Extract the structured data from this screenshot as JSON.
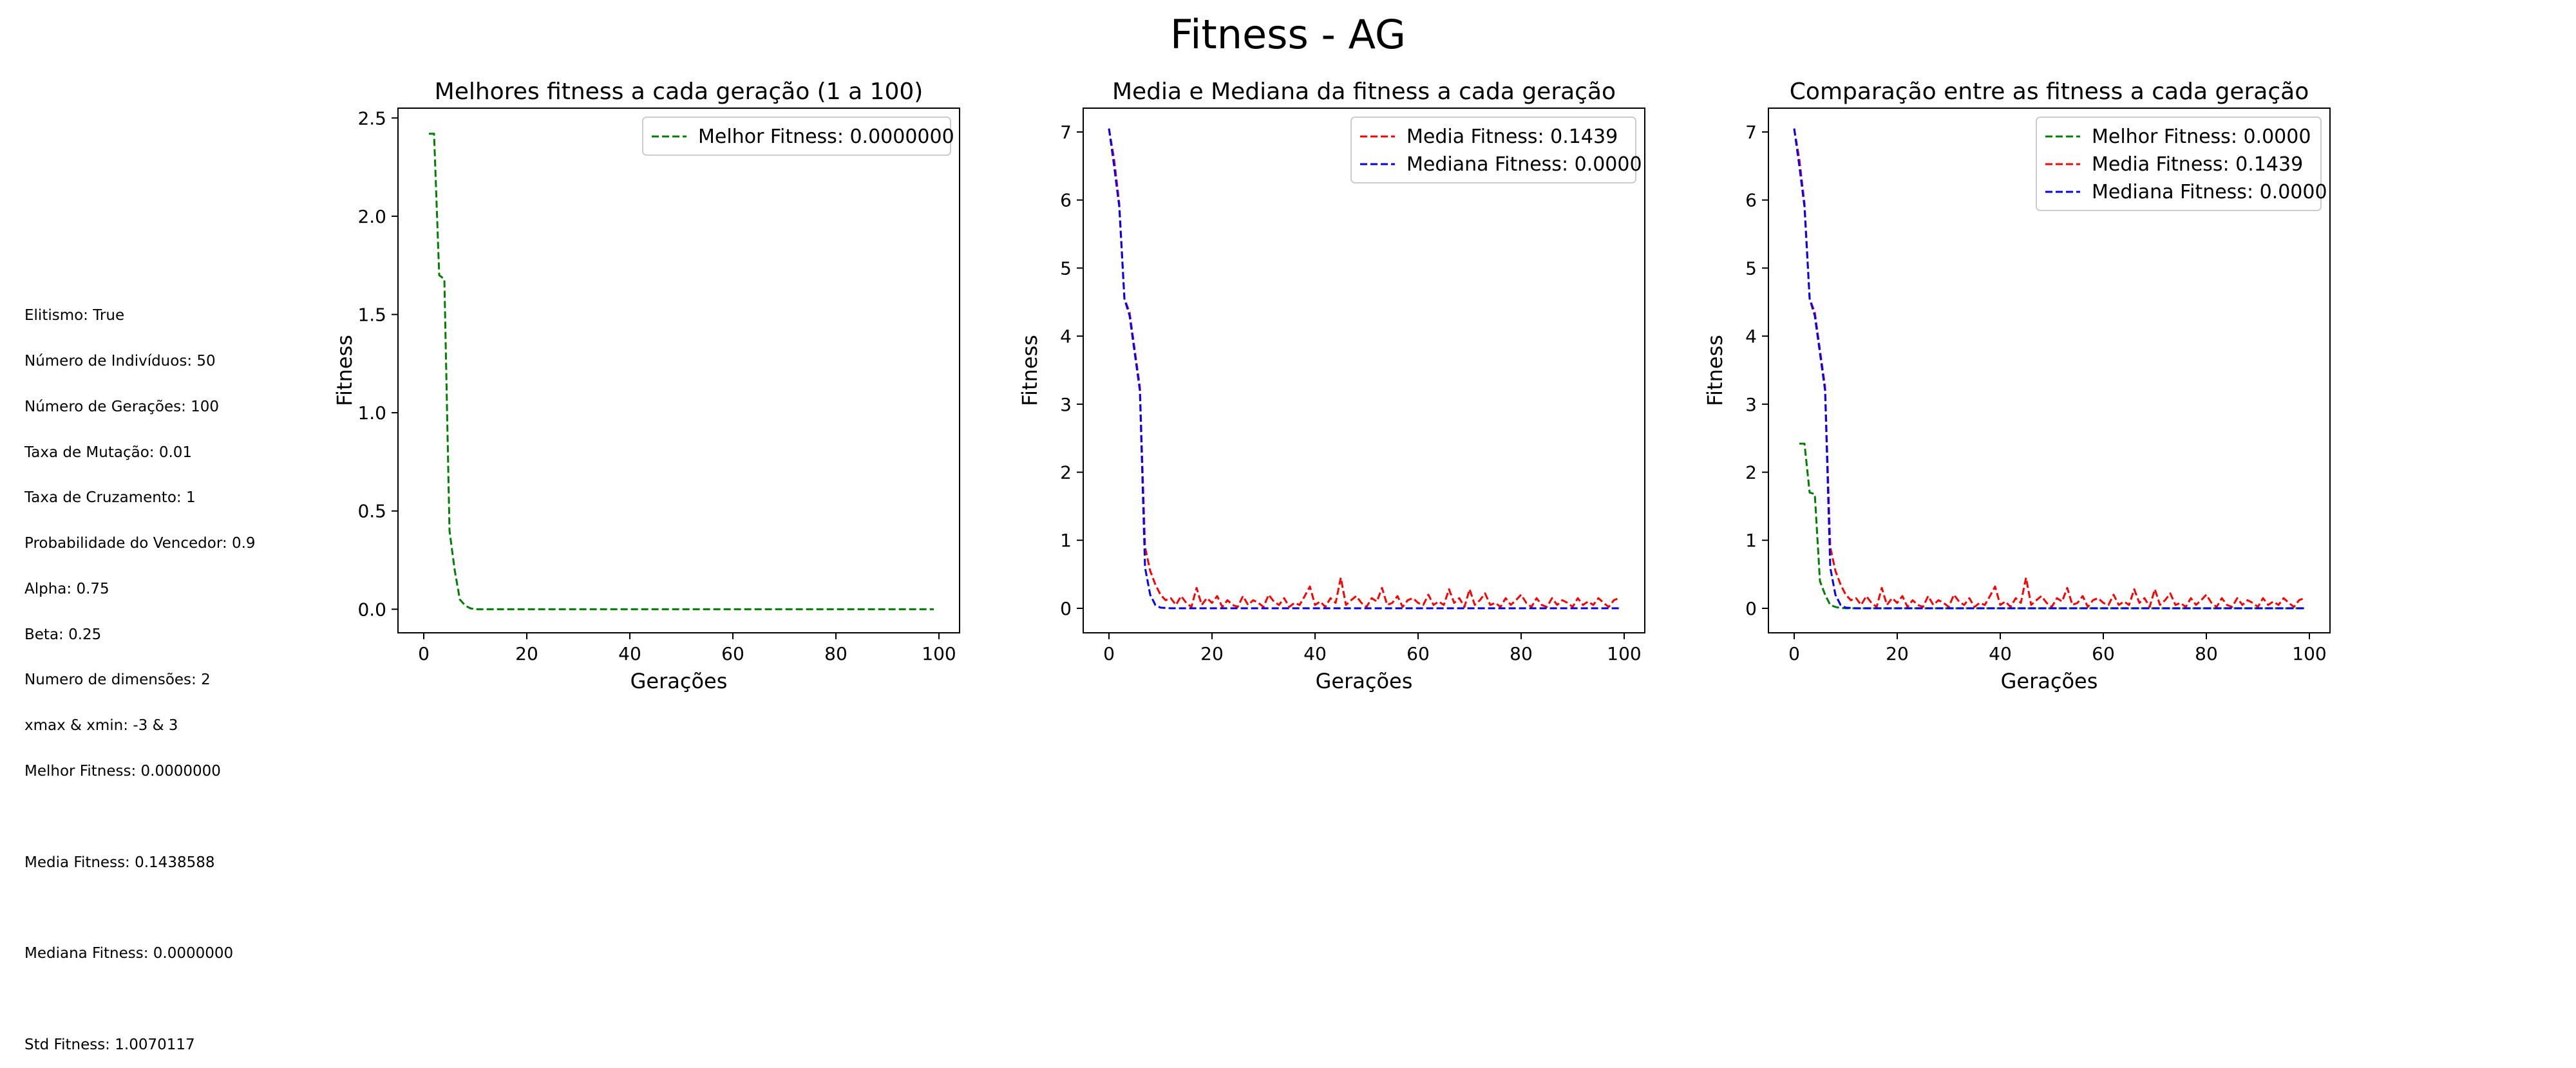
{
  "figure_title": "Fitness - AG",
  "info_lines": [
    "Elitismo: True",
    "Número de Indivíduos: 50",
    "Número de Gerações: 100",
    "Taxa de Mutação: 0.01",
    "Taxa de Cruzamento: 1",
    "Probabilidade do Vencedor: 0.9",
    "Alpha: 0.75",
    "Beta: 0.25",
    "Numero de dimensões: 2",
    "xmax & xmin: -3 & 3",
    "Melhor Fitness: 0.0000000",
    "",
    "Media Fitness: 0.1438588",
    "",
    "Mediana Fitness: 0.0000000",
    "",
    "Std Fitness: 1.0070117"
  ],
  "colors": {
    "best": "#008000",
    "mean": "#ff0000",
    "median": "#0000ff"
  },
  "chart_data": [
    {
      "type": "line",
      "title": "Melhores fitness a cada geração (1 a 100)",
      "xlabel": "Gerações",
      "ylabel": "Fitness",
      "xlim": [
        -5,
        104
      ],
      "ylim": [
        -0.12,
        2.55
      ],
      "xticks": [
        0,
        20,
        40,
        60,
        80,
        100
      ],
      "yticks": [
        0.0,
        0.5,
        1.0,
        1.5,
        2.0,
        2.5
      ],
      "ytick_labels": [
        "0.0",
        "0.5",
        "1.0",
        "1.5",
        "2.0",
        "2.5"
      ],
      "legend_loc": "upper right",
      "series": [
        {
          "name": "Melhor Fitness: 0.0000000",
          "color": "#008000",
          "x": [
            1,
            2,
            3,
            4,
            5,
            6,
            7,
            8,
            9,
            10,
            99
          ],
          "y": [
            2.42,
            2.42,
            1.7,
            1.68,
            0.4,
            0.2,
            0.05,
            0.02,
            0.005,
            0.0,
            0.0
          ]
        }
      ]
    },
    {
      "type": "line",
      "title": "Media e Mediana da fitness a cada geração",
      "xlabel": "Gerações",
      "ylabel": "Fitness",
      "xlim": [
        -5,
        104
      ],
      "ylim": [
        -0.36,
        7.35
      ],
      "xticks": [
        0,
        20,
        40,
        60,
        80,
        100
      ],
      "yticks": [
        0,
        1,
        2,
        3,
        4,
        5,
        6,
        7
      ],
      "ytick_labels": [
        "0",
        "1",
        "2",
        "3",
        "4",
        "5",
        "6",
        "7"
      ],
      "legend_loc": "upper right",
      "series": [
        {
          "name": "Media Fitness: 0.1439",
          "color": "#ff0000",
          "x": [
            0,
            1,
            2,
            3,
            4,
            5,
            6,
            7,
            8,
            9,
            10,
            11,
            12,
            13,
            14,
            15,
            16,
            17,
            18,
            19,
            20,
            21,
            22,
            23,
            24,
            25,
            26,
            27,
            28,
            29,
            30,
            31,
            32,
            33,
            34,
            35,
            36,
            37,
            38,
            39,
            40,
            41,
            42,
            43,
            44,
            45,
            46,
            47,
            48,
            49,
            50,
            51,
            52,
            53,
            54,
            55,
            56,
            57,
            58,
            59,
            60,
            61,
            62,
            63,
            64,
            65,
            66,
            67,
            68,
            69,
            70,
            71,
            72,
            73,
            74,
            75,
            76,
            77,
            78,
            79,
            80,
            81,
            82,
            83,
            84,
            85,
            86,
            87,
            88,
            89,
            90,
            91,
            92,
            93,
            94,
            95,
            96,
            97,
            98,
            99
          ],
          "y": [
            7.05,
            6.6,
            5.95,
            4.55,
            4.35,
            3.8,
            3.25,
            0.9,
            0.55,
            0.35,
            0.2,
            0.12,
            0.15,
            0.05,
            0.18,
            0.08,
            0.02,
            0.3,
            0.05,
            0.15,
            0.08,
            0.18,
            0.02,
            0.12,
            0.05,
            0.02,
            0.18,
            0.05,
            0.12,
            0.08,
            0.02,
            0.2,
            0.1,
            0.05,
            0.15,
            0.02,
            0.08,
            0.05,
            0.18,
            0.32,
            0.05,
            0.1,
            0.02,
            0.15,
            0.08,
            0.45,
            0.05,
            0.12,
            0.18,
            0.08,
            0.02,
            0.15,
            0.1,
            0.3,
            0.05,
            0.08,
            0.18,
            0.02,
            0.12,
            0.15,
            0.08,
            0.05,
            0.2,
            0.05,
            0.1,
            0.05,
            0.28,
            0.08,
            0.15,
            0.02,
            0.28,
            0.05,
            0.12,
            0.22,
            0.05,
            0.08,
            0.02,
            0.15,
            0.05,
            0.12,
            0.2,
            0.08,
            0.02,
            0.15,
            0.05,
            0.02,
            0.15,
            0.05,
            0.12,
            0.08,
            0.02,
            0.15,
            0.05,
            0.1,
            0.05,
            0.15,
            0.08,
            0.02,
            0.12,
            0.15
          ]
        },
        {
          "name": "Mediana Fitness: 0.0000",
          "color": "#0000ff",
          "x": [
            0,
            1,
            2,
            3,
            4,
            5,
            6,
            7,
            8,
            9,
            10,
            12,
            99
          ],
          "y": [
            7.05,
            6.5,
            5.9,
            4.55,
            4.3,
            3.75,
            3.2,
            0.6,
            0.2,
            0.05,
            0.01,
            0.0,
            0.0
          ]
        }
      ]
    },
    {
      "type": "line",
      "title": "Comparação entre as fitness a cada geração",
      "xlabel": "Gerações",
      "ylabel": "Fitness",
      "xlim": [
        -5,
        104
      ],
      "ylim": [
        -0.36,
        7.35
      ],
      "xticks": [
        0,
        20,
        40,
        60,
        80,
        100
      ],
      "yticks": [
        0,
        1,
        2,
        3,
        4,
        5,
        6,
        7
      ],
      "ytick_labels": [
        "0",
        "1",
        "2",
        "3",
        "4",
        "5",
        "6",
        "7"
      ],
      "legend_loc": "upper right",
      "series": [
        {
          "name": "Melhor Fitness: 0.0000",
          "color": "#008000",
          "x": [
            1,
            2,
            3,
            4,
            5,
            6,
            7,
            8,
            9,
            10,
            99
          ],
          "y": [
            2.42,
            2.42,
            1.7,
            1.68,
            0.4,
            0.2,
            0.05,
            0.02,
            0.005,
            0.0,
            0.0
          ]
        },
        {
          "name": "Media Fitness: 0.1439",
          "color": "#ff0000",
          "x": [
            0,
            1,
            2,
            3,
            4,
            5,
            6,
            7,
            8,
            9,
            10,
            11,
            12,
            13,
            14,
            15,
            16,
            17,
            18,
            19,
            20,
            21,
            22,
            23,
            24,
            25,
            26,
            27,
            28,
            29,
            30,
            31,
            32,
            33,
            34,
            35,
            36,
            37,
            38,
            39,
            40,
            41,
            42,
            43,
            44,
            45,
            46,
            47,
            48,
            49,
            50,
            51,
            52,
            53,
            54,
            55,
            56,
            57,
            58,
            59,
            60,
            61,
            62,
            63,
            64,
            65,
            66,
            67,
            68,
            69,
            70,
            71,
            72,
            73,
            74,
            75,
            76,
            77,
            78,
            79,
            80,
            81,
            82,
            83,
            84,
            85,
            86,
            87,
            88,
            89,
            90,
            91,
            92,
            93,
            94,
            95,
            96,
            97,
            98,
            99
          ],
          "y": [
            7.05,
            6.6,
            5.95,
            4.55,
            4.35,
            3.8,
            3.25,
            0.9,
            0.55,
            0.35,
            0.2,
            0.12,
            0.15,
            0.05,
            0.18,
            0.08,
            0.02,
            0.3,
            0.05,
            0.15,
            0.08,
            0.18,
            0.02,
            0.12,
            0.05,
            0.02,
            0.18,
            0.05,
            0.12,
            0.08,
            0.02,
            0.2,
            0.1,
            0.05,
            0.15,
            0.02,
            0.08,
            0.05,
            0.18,
            0.32,
            0.05,
            0.1,
            0.02,
            0.15,
            0.08,
            0.45,
            0.05,
            0.12,
            0.18,
            0.08,
            0.02,
            0.15,
            0.1,
            0.3,
            0.05,
            0.08,
            0.18,
            0.02,
            0.12,
            0.15,
            0.08,
            0.05,
            0.2,
            0.05,
            0.1,
            0.05,
            0.28,
            0.08,
            0.15,
            0.02,
            0.28,
            0.05,
            0.12,
            0.22,
            0.05,
            0.08,
            0.02,
            0.15,
            0.05,
            0.12,
            0.2,
            0.08,
            0.02,
            0.15,
            0.05,
            0.02,
            0.15,
            0.05,
            0.12,
            0.08,
            0.02,
            0.15,
            0.05,
            0.1,
            0.05,
            0.15,
            0.08,
            0.02,
            0.12,
            0.15
          ]
        },
        {
          "name": "Mediana Fitness: 0.0000",
          "color": "#0000ff",
          "x": [
            0,
            1,
            2,
            3,
            4,
            5,
            6,
            7,
            8,
            9,
            10,
            12,
            99
          ],
          "y": [
            7.05,
            6.5,
            5.9,
            4.55,
            4.3,
            3.75,
            3.2,
            0.6,
            0.2,
            0.05,
            0.01,
            0.0,
            0.0
          ]
        }
      ]
    }
  ]
}
